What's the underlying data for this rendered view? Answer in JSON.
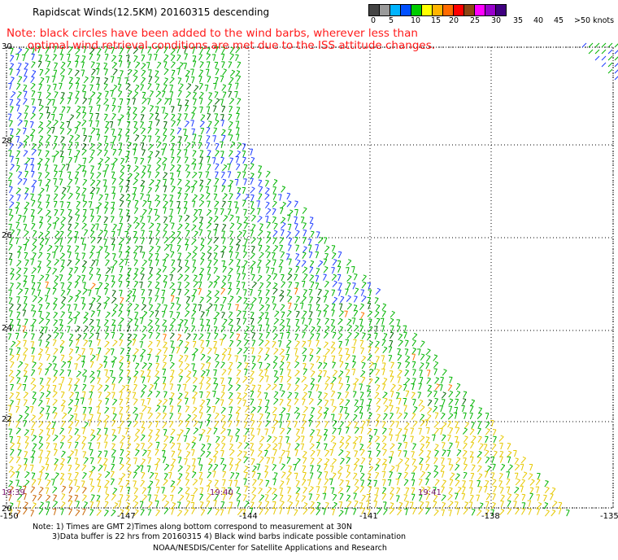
{
  "header": {
    "title": "Rapidscat Winds(12.5KM) 20160315 descending"
  },
  "note": {
    "line1": "Note: black circles have been added to the wind barbs, wherever less than",
    "line2": "      optimal wind retrieval conditions are met due to the ISS attitude changes."
  },
  "legend": {
    "labels": [
      "0",
      "5",
      "10",
      "15",
      "20",
      "25",
      "30",
      "35",
      "40",
      "45",
      ">50 knots"
    ],
    "colors": [
      "#444444",
      "#9a9a9a",
      "#00b4ff",
      "#0050ff",
      "#00cc00",
      "#ffff00",
      "#ffb400",
      "#ff6a00",
      "#ff0000",
      "#8b4513",
      "#ff00ff",
      "#9900cc",
      "#400080"
    ]
  },
  "map": {
    "lat_labels": [
      "30",
      "28",
      "26",
      "24",
      "22",
      "20"
    ],
    "lon_labels": [
      "-150",
      "-147",
      "-144",
      "-141",
      "-138",
      "-135"
    ],
    "time_labels": [
      "19:39",
      "19:40",
      "19:41"
    ]
  },
  "footer": {
    "line1": "Note: 1) Times are GMT 2)Times along bottom correspond to measurement at 30N",
    "line2": "3)Data buffer is 22 hrs from 20160315 4) Black wind barbs indicate possible contamination",
    "line3": "NOAA/NESDIS/Center for Satellite Applications and Research"
  }
}
